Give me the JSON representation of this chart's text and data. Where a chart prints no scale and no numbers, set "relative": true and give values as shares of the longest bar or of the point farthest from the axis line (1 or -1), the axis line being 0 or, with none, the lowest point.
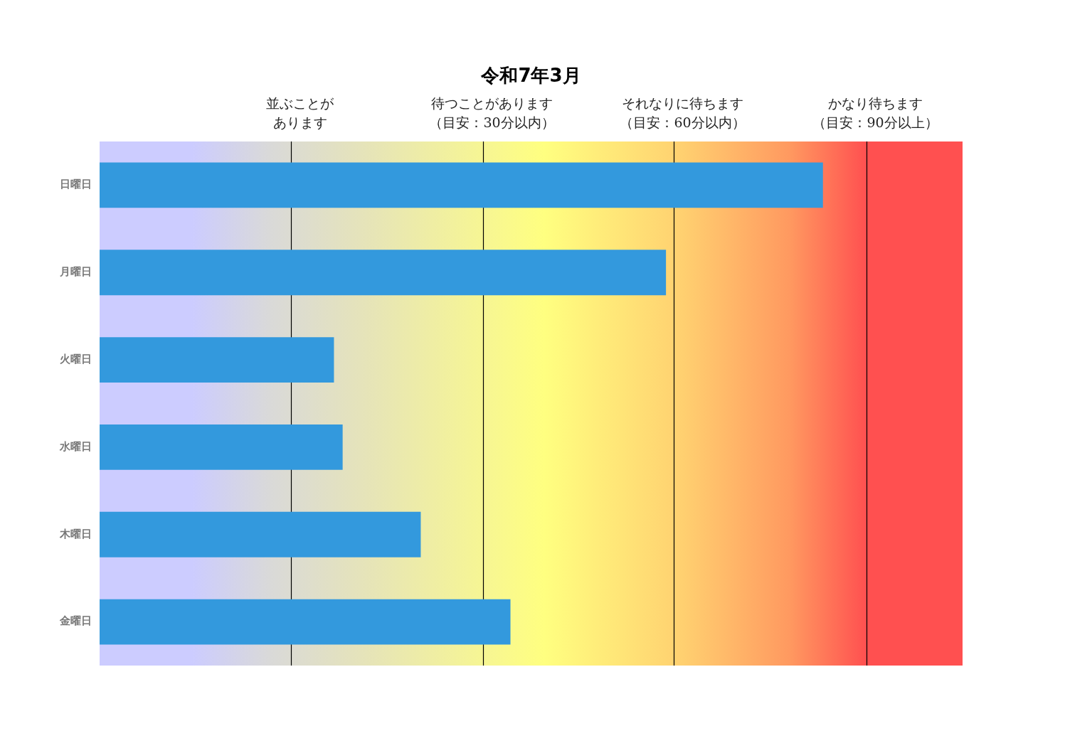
{
  "chart_data": {
    "type": "bar",
    "orientation": "horizontal",
    "relative": true,
    "title": "令和7年3月",
    "categories": [
      "日曜日",
      "月曜日",
      "火曜日",
      "水曜日",
      "木曜日",
      "金曜日"
    ],
    "values": [
      1,
      0.783,
      0.324,
      0.336,
      0.444,
      0.568
    ],
    "color": "#3399dd",
    "ref_lines": [
      {
        "axis": "x",
        "value": 0.265,
        "label": "並ぶことがあります",
        "color": "#000000"
      },
      {
        "axis": "x",
        "value": 0.53,
        "label": "待つことがあります（目安：30分以内）",
        "color": "#000000"
      },
      {
        "axis": "x",
        "value": 0.794,
        "label": "それなりに待ちます（目安：60分以内）",
        "color": "#000000"
      },
      {
        "axis": "x",
        "value": 1.06,
        "label": "かなり待ちます（目安：90分以上）",
        "color": "#000000"
      }
    ],
    "bands": [
      {
        "axis": "x",
        "from": 1.06,
        "to": 1.193,
        "color": "#ff5050"
      }
    ],
    "legend": false
  }
}
